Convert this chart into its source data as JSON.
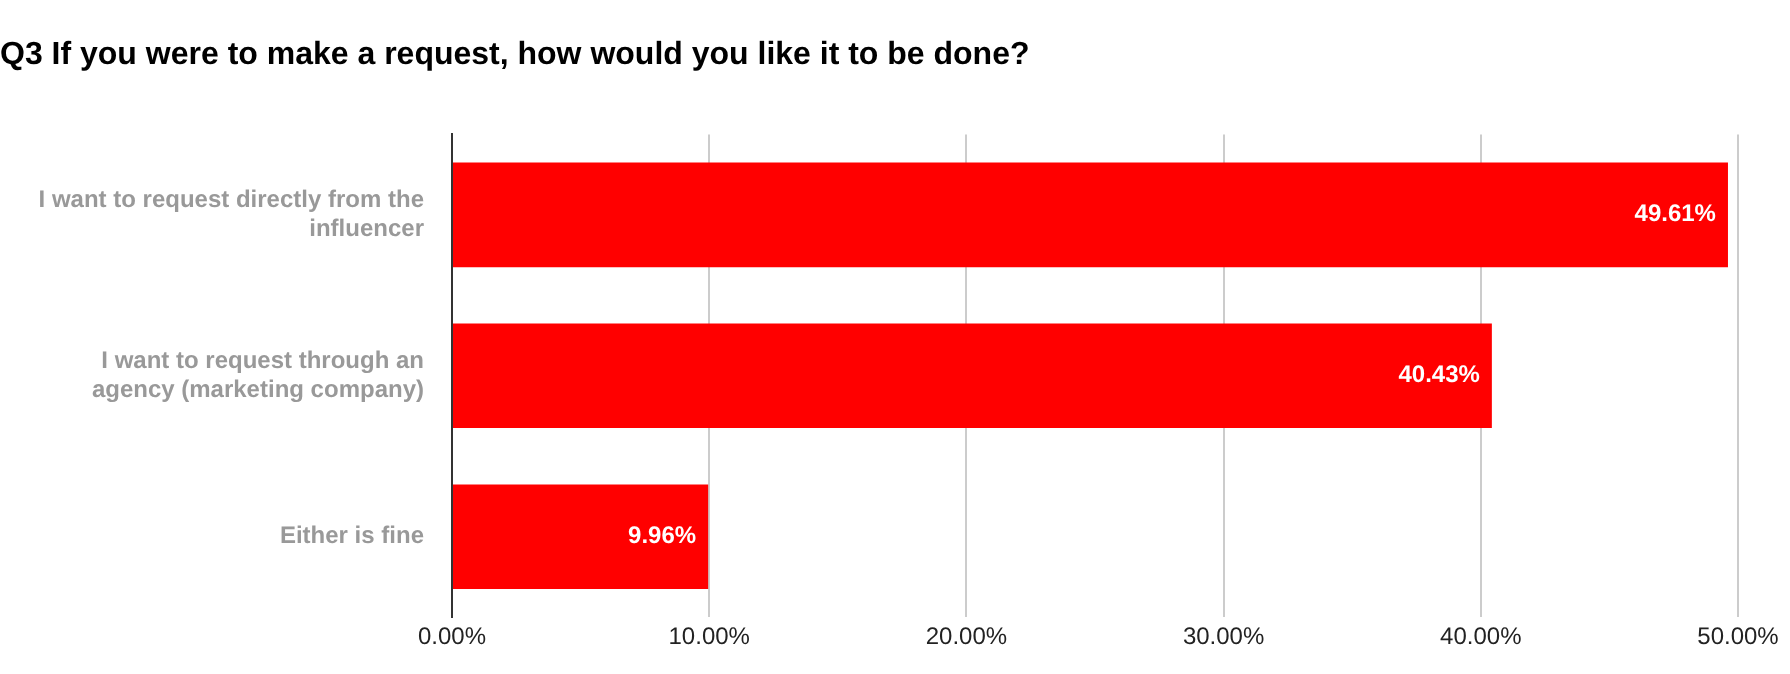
{
  "chart_data": {
    "type": "bar",
    "orientation": "horizontal",
    "title": "Q3 If you were to make a request, how would you like it to be done?",
    "categories": [
      "I want to request directly from the influencer",
      "I want to request through an agency (marketing company)",
      "Either is fine"
    ],
    "values": [
      49.61,
      40.43,
      9.96
    ],
    "color": "#ff0000",
    "value_labels": [
      "49.61%",
      "40.43%",
      "9.96%"
    ],
    "xlim": [
      0,
      50
    ],
    "xticks": [
      {
        "value": 0,
        "label": "0.00%"
      },
      {
        "value": 10,
        "label": "10.00%"
      },
      {
        "value": 20,
        "label": "20.00%"
      },
      {
        "value": 30,
        "label": "30.00%"
      },
      {
        "value": 40,
        "label": "40.00%"
      },
      {
        "value": 50,
        "label": "50.00%"
      }
    ],
    "grid": "x",
    "legend": false
  }
}
